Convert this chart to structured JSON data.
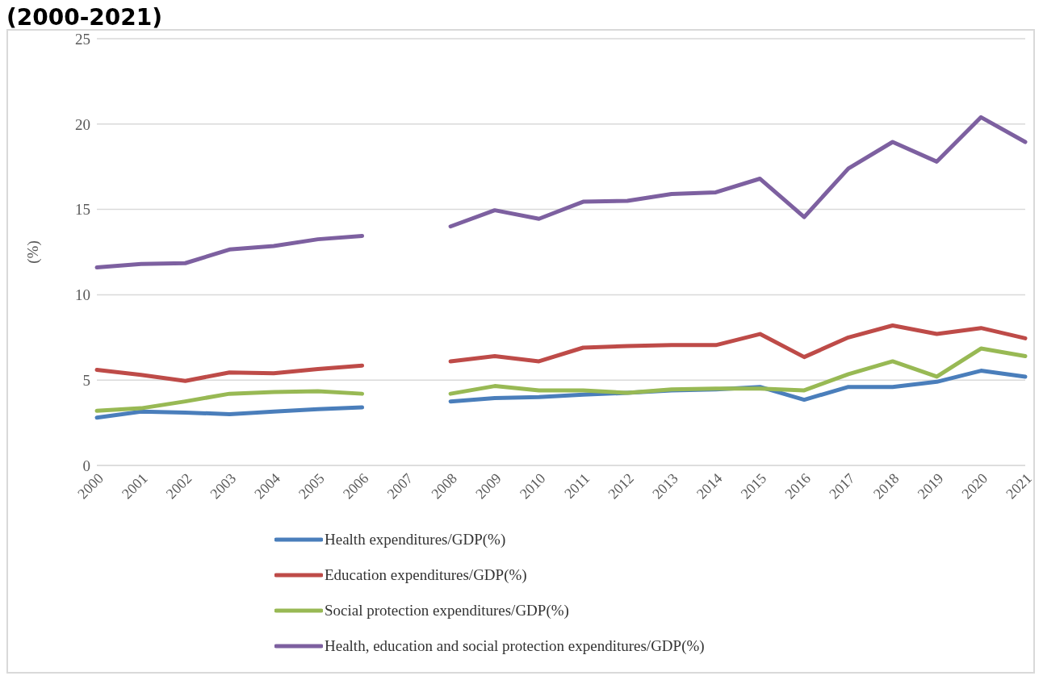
{
  "chart_data": {
    "type": "line",
    "title": "(2000-2021)",
    "ylabel": "(%)",
    "categories": [
      "2000",
      "2001",
      "2002",
      "2003",
      "2004",
      "2005",
      "2006",
      "2007",
      "2008",
      "2009",
      "2010",
      "2011",
      "2012",
      "2013",
      "2014",
      "2015",
      "2016",
      "2017",
      "2018",
      "2019",
      "2020",
      "2021"
    ],
    "series": [
      {
        "name": "Health expenditures/GDP(%)",
        "color": "#4a7ebb",
        "values": [
          2.8,
          3.15,
          3.1,
          3.0,
          3.15,
          3.3,
          3.4,
          null,
          3.75,
          3.95,
          4.0,
          4.15,
          4.25,
          4.4,
          4.45,
          4.6,
          3.85,
          4.6,
          4.6,
          4.9,
          5.55,
          5.2
        ]
      },
      {
        "name": "Education expenditures/GDP(%)",
        "color": "#be4b48",
        "values": [
          5.6,
          5.3,
          4.95,
          5.45,
          5.4,
          5.65,
          5.85,
          null,
          6.1,
          6.4,
          6.1,
          6.9,
          7.0,
          7.05,
          7.05,
          7.7,
          6.35,
          7.5,
          8.2,
          7.7,
          8.05,
          7.45
        ]
      },
      {
        "name": "Social protection expenditures/GDP(%)",
        "color": "#98b954",
        "values": [
          3.2,
          3.35,
          3.75,
          4.2,
          4.3,
          4.35,
          4.2,
          null,
          4.2,
          4.65,
          4.4,
          4.4,
          4.25,
          4.45,
          4.5,
          4.5,
          4.4,
          5.35,
          6.1,
          5.2,
          6.85,
          6.4
        ]
      },
      {
        "name": "Health, education and social protection expenditures/GDP(%)",
        "color": "#7d60a0",
        "values": [
          11.6,
          11.8,
          11.85,
          12.65,
          12.85,
          13.25,
          13.45,
          null,
          14.0,
          14.95,
          14.45,
          15.45,
          15.5,
          15.9,
          16.0,
          16.8,
          14.55,
          17.4,
          18.95,
          17.8,
          20.4,
          18.95
        ]
      }
    ],
    "ylim": [
      0,
      25
    ],
    "yticks": [
      0,
      5,
      10,
      15,
      20,
      25
    ],
    "grid": "y",
    "legend": "bottom",
    "marker": "none",
    "line_style": "solid"
  }
}
